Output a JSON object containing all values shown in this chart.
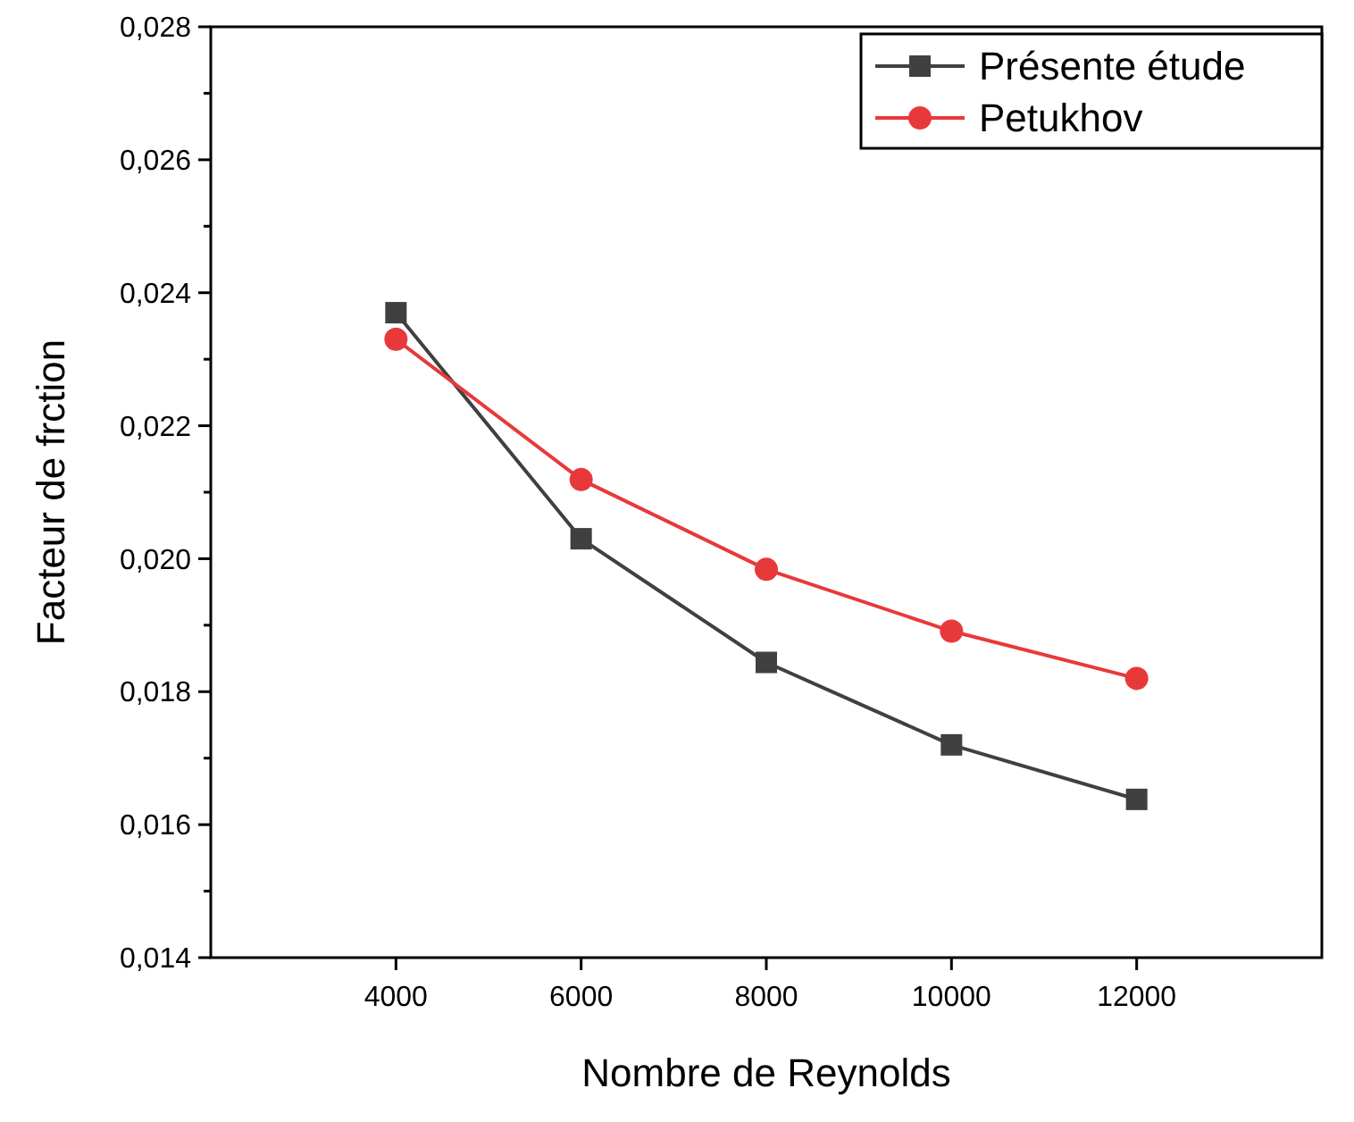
{
  "chart_data": {
    "type": "line",
    "xlabel": "Nombre de Reynolds",
    "ylabel": "Facteur de frction",
    "x": [
      4000,
      6000,
      8000,
      10000,
      12000
    ],
    "xlim": [
      2000,
      14000
    ],
    "xticks": [
      4000,
      6000,
      8000,
      10000,
      12000
    ],
    "ylim": [
      0.014,
      0.028
    ],
    "yticks": [
      {
        "value": 0.014,
        "label": "0,014"
      },
      {
        "value": 0.016,
        "label": "0,016"
      },
      {
        "value": 0.018,
        "label": "0,018"
      },
      {
        "value": 0.02,
        "label": "0,020"
      },
      {
        "value": 0.022,
        "label": "0,022"
      },
      {
        "value": 0.024,
        "label": "0,024"
      },
      {
        "value": 0.026,
        "label": "0,026"
      },
      {
        "value": 0.028,
        "label": "0,028"
      }
    ],
    "legend": "top right",
    "grid": false,
    "line_style": "solid",
    "series": [
      {
        "name": "Présente étude",
        "color": "#404040",
        "marker": "square",
        "values": [
          0.0237,
          0.0203,
          0.01844,
          0.0172,
          0.01638
        ]
      },
      {
        "name": "Petukhov",
        "color": "#e8393a",
        "marker": "circle",
        "values": [
          0.0233,
          0.02119,
          0.01984,
          0.01891,
          0.0182
        ]
      }
    ]
  }
}
